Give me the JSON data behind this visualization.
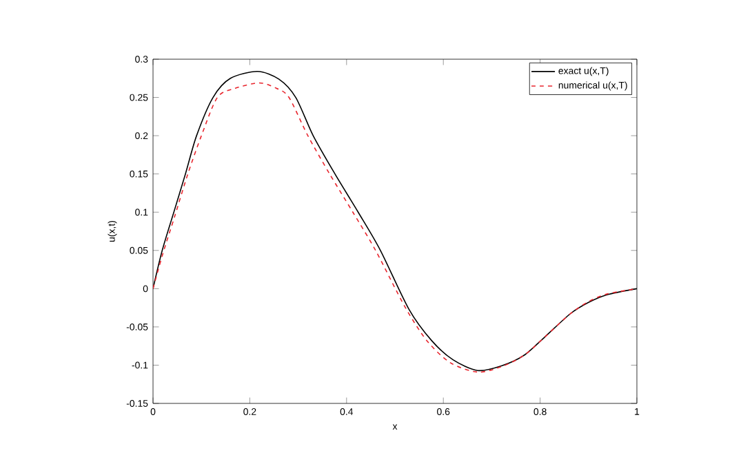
{
  "chart_data": {
    "type": "line",
    "xlabel": "x",
    "ylabel": "u(x,t)",
    "xlim": [
      0,
      1
    ],
    "xticks": [
      0,
      0.2,
      0.4,
      0.6,
      0.8,
      1
    ],
    "ylim": [
      -0.15,
      0.3
    ],
    "yticks": [
      -0.15,
      -0.1,
      -0.05,
      0,
      0.05,
      0.1,
      0.15,
      0.2,
      0.25,
      0.3
    ],
    "legend": "top right",
    "grid": false,
    "series": [
      {
        "name": "exact u(x,T)",
        "color": "#000000",
        "line_style": "solid",
        "x": [
          0,
          0.019,
          0.043,
          0.067,
          0.09,
          0.124,
          0.16,
          0.216,
          0.26,
          0.295,
          0.331,
          0.376,
          0.424,
          0.47,
          0.529,
          0.576,
          0.62,
          0.671,
          0.72,
          0.767,
          0.81,
          0.862,
          0.9,
          0.938,
          1
        ],
        "values": [
          0,
          0.05,
          0.1,
          0.15,
          0.2,
          0.25,
          0.275,
          0.284,
          0.274,
          0.25,
          0.2,
          0.15,
          0.1,
          0.05,
          -0.027,
          -0.068,
          -0.093,
          -0.107,
          -0.101,
          -0.087,
          -0.063,
          -0.033,
          -0.018,
          -0.008,
          0
        ]
      },
      {
        "name": "numerical u(x,T)",
        "color": "#e8242c",
        "line_style": "dashed",
        "x": [
          0,
          0.02,
          0.045,
          0.072,
          0.1,
          0.133,
          0.17,
          0.22,
          0.255,
          0.281,
          0.32,
          0.365,
          0.413,
          0.46,
          0.52,
          0.566,
          0.615,
          0.671,
          0.72,
          0.767,
          0.81,
          0.862,
          0.9,
          0.938,
          1
        ],
        "values": [
          0,
          0.045,
          0.095,
          0.15,
          0.2,
          0.25,
          0.262,
          0.269,
          0.262,
          0.25,
          0.2,
          0.15,
          0.1,
          0.05,
          -0.023,
          -0.068,
          -0.097,
          -0.109,
          -0.102,
          -0.087,
          -0.063,
          -0.033,
          -0.017,
          -0.007,
          0
        ]
      }
    ]
  }
}
